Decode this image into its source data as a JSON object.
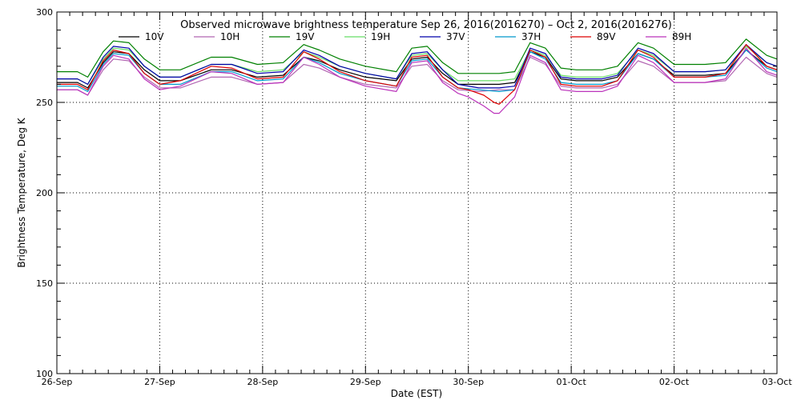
{
  "chart_data": {
    "type": "line",
    "title": "Observed microwave brightness temperature Sep 26, 2016(2016270) – Oct  2, 2016(2016276)",
    "xlabel": "Date (EST)",
    "ylabel": "Brightness Temperature, Deg K",
    "ylim": [
      100,
      300
    ],
    "y_ticks": [
      100,
      150,
      200,
      250,
      300
    ],
    "xlim": [
      0,
      7
    ],
    "x_tick_labels": [
      "26-Sep",
      "27-Sep",
      "28-Sep",
      "29-Sep",
      "30-Sep",
      "01-Oct",
      "02-Oct",
      "03-Oct"
    ],
    "grid": true,
    "legend_position": "top",
    "series": [
      {
        "name": "10V",
        "color": "#000000",
        "x": [
          0,
          0.2,
          0.3,
          0.45,
          0.55,
          0.7,
          0.85,
          1.0,
          1.2,
          1.5,
          1.7,
          1.95,
          2.2,
          2.4,
          2.55,
          2.75,
          3.0,
          3.3,
          3.45,
          3.6,
          3.75,
          3.9,
          4.1,
          4.3,
          4.45,
          4.6,
          4.75,
          4.9,
          5.05,
          5.3,
          5.45,
          5.65,
          5.8,
          6.0,
          6.3,
          6.5,
          6.7,
          6.9,
          7.0
        ],
        "y": [
          261,
          261,
          258,
          272,
          278,
          277,
          268,
          262,
          262,
          268,
          268,
          264,
          265,
          275,
          273,
          268,
          264,
          262,
          274,
          275,
          266,
          260,
          260,
          260,
          261,
          278,
          275,
          263,
          262,
          262,
          264,
          277,
          274,
          265,
          265,
          266,
          279,
          270,
          268
        ]
      },
      {
        "name": "10H",
        "color": "#b266b2",
        "x": [
          0,
          0.2,
          0.3,
          0.45,
          0.55,
          0.7,
          0.85,
          1.0,
          1.2,
          1.5,
          1.7,
          1.95,
          2.2,
          2.4,
          2.55,
          2.75,
          3.0,
          3.3,
          3.45,
          3.6,
          3.75,
          3.9,
          4.1,
          4.3,
          4.45,
          4.6,
          4.75,
          4.9,
          5.05,
          5.3,
          5.45,
          5.65,
          5.8,
          6.0,
          6.3,
          6.5,
          6.7,
          6.9,
          7.0
        ],
        "y": [
          257,
          257,
          254,
          268,
          274,
          273,
          264,
          258,
          258,
          264,
          264,
          260,
          261,
          271,
          269,
          264,
          260,
          258,
          270,
          271,
          262,
          257,
          256,
          257,
          257,
          275,
          271,
          259,
          258,
          258,
          260,
          273,
          270,
          261,
          261,
          262,
          275,
          266,
          264
        ]
      },
      {
        "name": "19V",
        "color": "#008000",
        "x": [
          0,
          0.2,
          0.3,
          0.45,
          0.55,
          0.7,
          0.85,
          1.0,
          1.2,
          1.5,
          1.7,
          1.95,
          2.2,
          2.4,
          2.55,
          2.75,
          3.0,
          3.3,
          3.45,
          3.6,
          3.75,
          3.9,
          4.1,
          4.3,
          4.45,
          4.6,
          4.75,
          4.9,
          5.05,
          5.3,
          5.45,
          5.65,
          5.8,
          6.0,
          6.3,
          6.5,
          6.7,
          6.9,
          7.0
        ],
        "y": [
          267,
          267,
          264,
          278,
          284,
          283,
          274,
          268,
          268,
          275,
          275,
          271,
          272,
          282,
          279,
          274,
          270,
          267,
          280,
          281,
          272,
          266,
          266,
          266,
          267,
          283,
          280,
          269,
          268,
          268,
          270,
          283,
          280,
          271,
          271,
          272,
          285,
          276,
          274
        ]
      },
      {
        "name": "19H",
        "color": "#66dd66",
        "x": [
          0,
          0.2,
          0.3,
          0.45,
          0.55,
          0.7,
          0.85,
          1.0,
          1.2,
          1.5,
          1.7,
          1.95,
          2.2,
          2.4,
          2.55,
          2.75,
          3.0,
          3.3,
          3.45,
          3.6,
          3.75,
          3.9,
          4.1,
          4.3,
          4.45,
          4.6,
          4.75,
          4.9,
          5.05,
          5.3,
          5.45,
          5.65,
          5.8,
          6.0,
          6.3,
          6.5,
          6.7,
          6.9,
          7.0
        ],
        "y": [
          263,
          263,
          260,
          274,
          280,
          279,
          270,
          264,
          264,
          271,
          271,
          267,
          268,
          278,
          275,
          270,
          266,
          263,
          276,
          277,
          268,
          262,
          262,
          262,
          263,
          279,
          276,
          265,
          264,
          264,
          266,
          279,
          276,
          267,
          267,
          268,
          281,
          272,
          270
        ]
      },
      {
        "name": "37V",
        "color": "#0000aa",
        "x": [
          0,
          0.2,
          0.3,
          0.45,
          0.55,
          0.7,
          0.85,
          1.0,
          1.2,
          1.5,
          1.7,
          1.95,
          2.2,
          2.4,
          2.55,
          2.75,
          3.0,
          3.3,
          3.45,
          3.6,
          3.75,
          3.9,
          4.1,
          4.3,
          4.45,
          4.6,
          4.75,
          4.9,
          5.05,
          5.3,
          5.45,
          5.65,
          5.8,
          6.0,
          6.3,
          6.5,
          6.7,
          6.9,
          7.0
        ],
        "y": [
          263,
          263,
          260,
          275,
          281,
          280,
          270,
          264,
          264,
          271,
          271,
          266,
          267,
          279,
          276,
          270,
          266,
          263,
          277,
          278,
          268,
          260,
          258,
          258,
          259,
          280,
          277,
          264,
          263,
          263,
          265,
          280,
          277,
          267,
          267,
          268,
          282,
          272,
          270
        ]
      },
      {
        "name": "37H",
        "color": "#0099cc",
        "x": [
          0,
          0.2,
          0.3,
          0.45,
          0.55,
          0.7,
          0.85,
          1.0,
          1.2,
          1.5,
          1.7,
          1.95,
          2.2,
          2.4,
          2.55,
          2.75,
          3.0,
          3.3,
          3.45,
          3.6,
          3.75,
          3.9,
          4.1,
          4.3,
          4.45,
          4.6,
          4.75,
          4.9,
          5.05,
          5.3,
          5.45,
          5.65,
          5.8,
          6.0,
          6.3,
          6.5,
          6.7,
          6.9,
          7.0
        ],
        "y": [
          259,
          259,
          256,
          271,
          277,
          276,
          266,
          260,
          260,
          267,
          267,
          262,
          263,
          275,
          272,
          266,
          262,
          259,
          273,
          274,
          264,
          258,
          257,
          256,
          257,
          278,
          274,
          261,
          260,
          260,
          262,
          277,
          274,
          264,
          264,
          265,
          279,
          269,
          267
        ]
      },
      {
        "name": "89V",
        "color": "#dd0000",
        "x": [
          0,
          0.2,
          0.3,
          0.45,
          0.55,
          0.7,
          0.85,
          1.0,
          1.2,
          1.5,
          1.7,
          1.95,
          2.2,
          2.4,
          2.55,
          2.75,
          3.0,
          3.3,
          3.45,
          3.6,
          3.75,
          3.9,
          4.0,
          4.15,
          4.25,
          4.3,
          4.45,
          4.6,
          4.75,
          4.9,
          5.05,
          5.3,
          5.45,
          5.65,
          5.8,
          6.0,
          6.3,
          6.5,
          6.7,
          6.9,
          7.0
        ],
        "y": [
          260,
          260,
          257,
          273,
          279,
          277,
          266,
          260,
          262,
          270,
          269,
          263,
          264,
          278,
          274,
          267,
          262,
          259,
          275,
          276,
          264,
          258,
          257,
          254,
          250,
          249,
          257,
          279,
          275,
          260,
          259,
          259,
          262,
          279,
          275,
          264,
          264,
          266,
          282,
          270,
          268
        ]
      },
      {
        "name": "89H",
        "color": "#bb33bb",
        "x": [
          0,
          0.2,
          0.3,
          0.45,
          0.55,
          0.7,
          0.85,
          1.0,
          1.2,
          1.5,
          1.7,
          1.95,
          2.2,
          2.4,
          2.55,
          2.75,
          3.0,
          3.3,
          3.45,
          3.6,
          3.75,
          3.9,
          4.0,
          4.15,
          4.25,
          4.3,
          4.45,
          4.6,
          4.75,
          4.9,
          5.05,
          5.3,
          5.45,
          5.65,
          5.8,
          6.0,
          6.3,
          6.5,
          6.7,
          6.9,
          7.0
        ],
        "y": [
          257,
          257,
          254,
          270,
          276,
          274,
          263,
          257,
          259,
          267,
          266,
          260,
          261,
          275,
          271,
          264,
          259,
          256,
          272,
          273,
          261,
          255,
          253,
          248,
          244,
          244,
          253,
          276,
          272,
          257,
          256,
          256,
          259,
          276,
          272,
          261,
          261,
          263,
          280,
          267,
          265
        ]
      }
    ]
  }
}
